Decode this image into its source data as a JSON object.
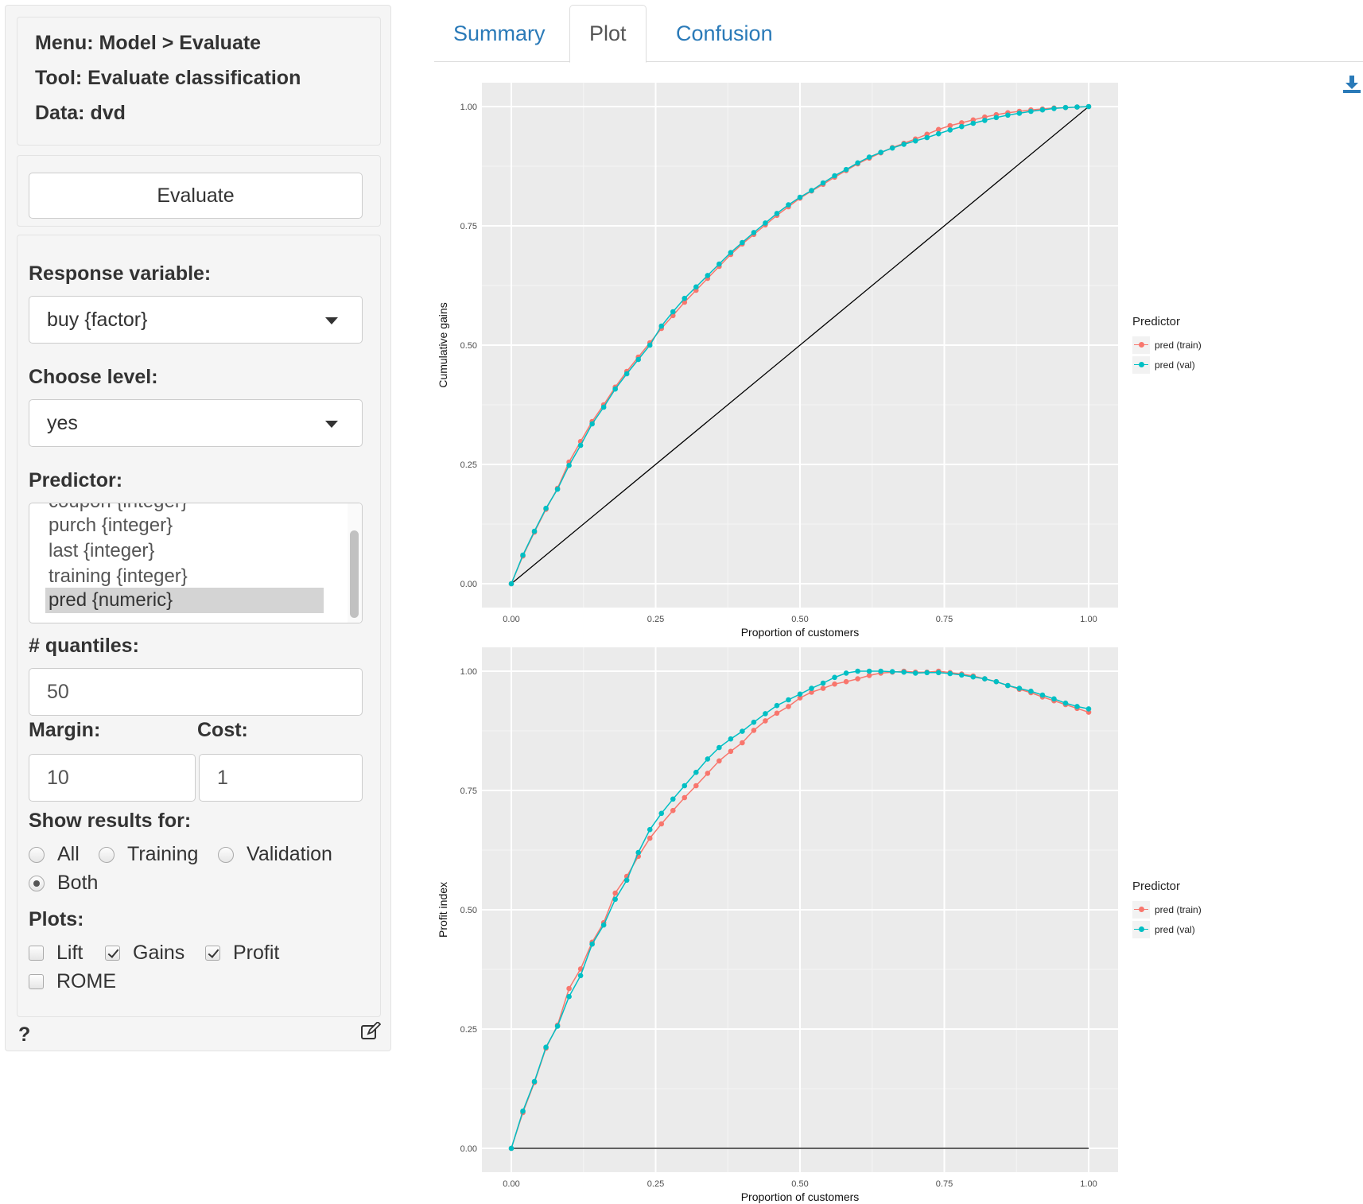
{
  "sidebar": {
    "info": {
      "menu": "Menu: Model > Evaluate",
      "tool": "Tool: Evaluate classification",
      "data": "Data: dvd"
    },
    "evaluate_label": "Evaluate",
    "response_label": "Response variable:",
    "response_value": "buy {factor}",
    "level_label": "Choose level:",
    "level_value": "yes",
    "predictor_label": "Predictor:",
    "predictor_options": [
      "coupon {integer}",
      "purch {integer}",
      "last {integer}",
      "training {integer}",
      "pred {numeric}"
    ],
    "quantiles_label": "# quantiles:",
    "quantiles_value": "50",
    "margin_label": "Margin:",
    "margin_value": "10",
    "cost_label": "Cost:",
    "cost_value": "1",
    "show_label": "Show results for:",
    "show_options": [
      "All",
      "Training",
      "Validation",
      "Both"
    ],
    "plots_label": "Plots:",
    "plot_options": [
      "Lift",
      "Gains",
      "Profit",
      "ROME"
    ],
    "help": "?"
  },
  "tabs": [
    "Summary",
    "Plot",
    "Confusion"
  ],
  "colors": {
    "train": "#F8766D",
    "val": "#00BFC4",
    "panel": "#EBEBEB",
    "accent": "#2a7ab8"
  },
  "icons": {
    "download": "download-icon",
    "edit": "edit-icon"
  },
  "chart_data": [
    {
      "type": "line",
      "xlabel": "Proportion of customers",
      "ylabel": "Cumulative gains",
      "xlim": [
        0,
        1
      ],
      "ylim": [
        0,
        1
      ],
      "xticks": [
        "0.00",
        "0.25",
        "0.50",
        "0.75",
        "1.00"
      ],
      "yticks": [
        "0.00",
        "0.25",
        "0.50",
        "0.75",
        "1.00"
      ],
      "grid": true,
      "legend": {
        "title": "Predictor",
        "position": "right"
      },
      "x": [
        0,
        0.02,
        0.04,
        0.06,
        0.08,
        0.1,
        0.12,
        0.14,
        0.16,
        0.18,
        0.2,
        0.22,
        0.24,
        0.26,
        0.28,
        0.3,
        0.32,
        0.34,
        0.36,
        0.38,
        0.4,
        0.42,
        0.44,
        0.46,
        0.48,
        0.5,
        0.52,
        0.54,
        0.56,
        0.58,
        0.6,
        0.62,
        0.64,
        0.66,
        0.68,
        0.7,
        0.72,
        0.74,
        0.76,
        0.78,
        0.8,
        0.82,
        0.84,
        0.86,
        0.88,
        0.9,
        0.92,
        0.94,
        0.96,
        0.98,
        1
      ],
      "series": [
        {
          "name": "pred (train)",
          "values": [
            0,
            0.058,
            0.108,
            0.156,
            0.2,
            0.255,
            0.298,
            0.34,
            0.375,
            0.412,
            0.445,
            0.475,
            0.505,
            0.535,
            0.562,
            0.59,
            0.615,
            0.64,
            0.665,
            0.69,
            0.712,
            0.732,
            0.752,
            0.772,
            0.79,
            0.808,
            0.823,
            0.837,
            0.852,
            0.866,
            0.88,
            0.892,
            0.903,
            0.914,
            0.923,
            0.932,
            0.942,
            0.952,
            0.96,
            0.966,
            0.972,
            0.978,
            0.983,
            0.987,
            0.99,
            0.993,
            0.995,
            0.997,
            0.998,
            0.999,
            1.0
          ]
        },
        {
          "name": "pred (val)",
          "values": [
            0,
            0.06,
            0.11,
            0.158,
            0.198,
            0.248,
            0.29,
            0.335,
            0.37,
            0.408,
            0.44,
            0.47,
            0.5,
            0.54,
            0.57,
            0.598,
            0.622,
            0.646,
            0.67,
            0.694,
            0.715,
            0.736,
            0.756,
            0.776,
            0.794,
            0.81,
            0.824,
            0.84,
            0.855,
            0.868,
            0.882,
            0.894,
            0.904,
            0.913,
            0.921,
            0.928,
            0.935,
            0.943,
            0.951,
            0.958,
            0.965,
            0.971,
            0.977,
            0.982,
            0.986,
            0.99,
            0.993,
            0.996,
            0.998,
            0.999,
            1.0
          ]
        }
      ],
      "baseline": {
        "x": [
          0,
          1
        ],
        "y": [
          0,
          1
        ]
      }
    },
    {
      "type": "line",
      "xlabel": "Proportion of customers",
      "ylabel": "Profit index",
      "xlim": [
        0,
        1
      ],
      "ylim": [
        0,
        1
      ],
      "xticks": [
        "0.00",
        "0.25",
        "0.50",
        "0.75",
        "1.00"
      ],
      "yticks": [
        "0.00",
        "0.25",
        "0.50",
        "0.75",
        "1.00"
      ],
      "grid": true,
      "legend": {
        "title": "Predictor",
        "position": "right"
      },
      "x": [
        0,
        0.02,
        0.04,
        0.06,
        0.08,
        0.1,
        0.12,
        0.14,
        0.16,
        0.18,
        0.2,
        0.22,
        0.24,
        0.26,
        0.28,
        0.3,
        0.32,
        0.34,
        0.36,
        0.38,
        0.4,
        0.42,
        0.44,
        0.46,
        0.48,
        0.5,
        0.52,
        0.54,
        0.56,
        0.58,
        0.6,
        0.62,
        0.64,
        0.66,
        0.68,
        0.7,
        0.72,
        0.74,
        0.76,
        0.78,
        0.8,
        0.82,
        0.84,
        0.86,
        0.88,
        0.9,
        0.92,
        0.94,
        0.96,
        0.98,
        1
      ],
      "series": [
        {
          "name": "pred (train)",
          "values": [
            0,
            0.075,
            0.138,
            0.21,
            0.258,
            0.335,
            0.376,
            0.432,
            0.473,
            0.535,
            0.57,
            0.612,
            0.65,
            0.68,
            0.708,
            0.735,
            0.76,
            0.786,
            0.812,
            0.832,
            0.85,
            0.876,
            0.896,
            0.912,
            0.926,
            0.944,
            0.956,
            0.964,
            0.973,
            0.978,
            0.984,
            0.991,
            0.996,
            0.998,
            1.0,
            0.998,
            0.998,
            1.0,
            0.997,
            0.994,
            0.99,
            0.984,
            0.978,
            0.97,
            0.962,
            0.955,
            0.946,
            0.938,
            0.93,
            0.922,
            0.914
          ]
        },
        {
          "name": "pred (val)",
          "values": [
            0,
            0.078,
            0.14,
            0.212,
            0.256,
            0.318,
            0.362,
            0.428,
            0.468,
            0.522,
            0.562,
            0.62,
            0.668,
            0.702,
            0.732,
            0.76,
            0.788,
            0.816,
            0.84,
            0.858,
            0.874,
            0.893,
            0.911,
            0.928,
            0.94,
            0.952,
            0.964,
            0.975,
            0.987,
            0.996,
            1.0,
            1.0,
            1.0,
            0.999,
            0.998,
            0.996,
            0.997,
            0.997,
            0.995,
            0.992,
            0.988,
            0.984,
            0.978,
            0.97,
            0.964,
            0.958,
            0.95,
            0.942,
            0.933,
            0.926,
            0.921
          ]
        }
      ],
      "baseline": {
        "x": [
          0,
          1
        ],
        "y": [
          0,
          0
        ]
      }
    }
  ]
}
